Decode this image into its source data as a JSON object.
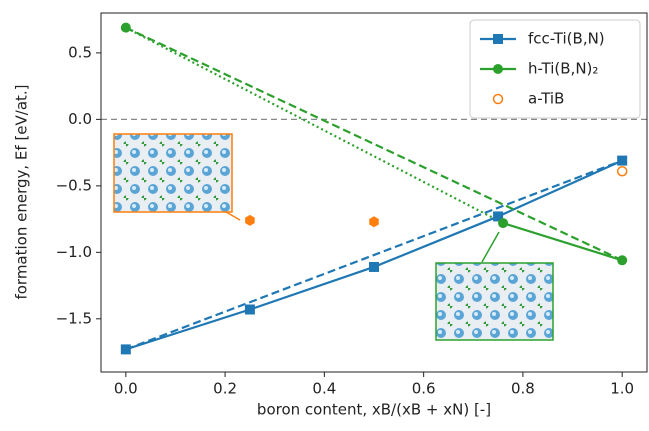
{
  "chart_data": {
    "type": "scatter",
    "xlabel": "boron content, xB/(xB + xN) [-]",
    "ylabel": "formation energy, Ef [eV/at.]",
    "xlim": [
      -0.05,
      1.05
    ],
    "ylim": [
      -1.9,
      0.8
    ],
    "xticks": [
      {
        "value": 0,
        "label": "0.0"
      },
      0.2,
      0.4,
      0.6,
      0.8,
      {
        "value": 1,
        "label": "1.0"
      }
    ],
    "yticks": [
      {
        "value": -1.5,
        "label": "−1.5"
      },
      {
        "value": -1,
        "label": "−1.0"
      },
      {
        "value": -0.5,
        "label": "−0.5"
      },
      {
        "value": 0,
        "label": "0.0"
      },
      0.5
    ],
    "reference_line": 0,
    "series": [
      {
        "name": "fcc-Ti(B,N)",
        "color": "#1f77b4",
        "marker": "square",
        "x": [
          0,
          0.25,
          0.5,
          0.75,
          1.0
        ],
        "values": [
          -1.73,
          -1.43,
          -1.11,
          -0.73,
          -0.31
        ]
      },
      {
        "name": "h-Ti(B,N)₂",
        "color": "#2ca02c",
        "marker": "circle",
        "x": [
          0,
          0.76,
          1.0
        ],
        "values": [
          0.69,
          -0.78,
          -1.06
        ]
      },
      {
        "name": "a-TiB",
        "color": "#ff7f0e",
        "marker": "open-circle",
        "x": [
          1.0
        ],
        "values": [
          -0.39
        ]
      }
    ],
    "extra_points": {
      "color": "#ff7f0e",
      "marker": "hexagon",
      "x": [
        0.25,
        0.5
      ],
      "values": [
        -0.76,
        -0.77
      ]
    },
    "lines": [
      {
        "color": "#1f77b4",
        "dash": "solid",
        "x": [
          0,
          0.25,
          0.5,
          0.75,
          1.0
        ],
        "values": [
          -1.73,
          -1.43,
          -1.11,
          -0.73,
          -0.31
        ]
      },
      {
        "color": "#1f77b4",
        "dash": "dashed",
        "x": [
          0,
          1.0
        ],
        "values": [
          -1.73,
          -0.31
        ]
      },
      {
        "color": "#2ca02c",
        "dash": "solid",
        "x": [
          0.76,
          1.0
        ],
        "values": [
          -0.78,
          -1.06
        ]
      },
      {
        "color": "#2ca02c",
        "dash": "dashed",
        "x": [
          0,
          1.0
        ],
        "values": [
          0.69,
          -1.06
        ]
      },
      {
        "color": "#2ca02c",
        "dash": "dotted",
        "x": [
          0,
          0.76
        ],
        "values": [
          0.69,
          -0.78
        ]
      }
    ],
    "legend": "upper right"
  }
}
